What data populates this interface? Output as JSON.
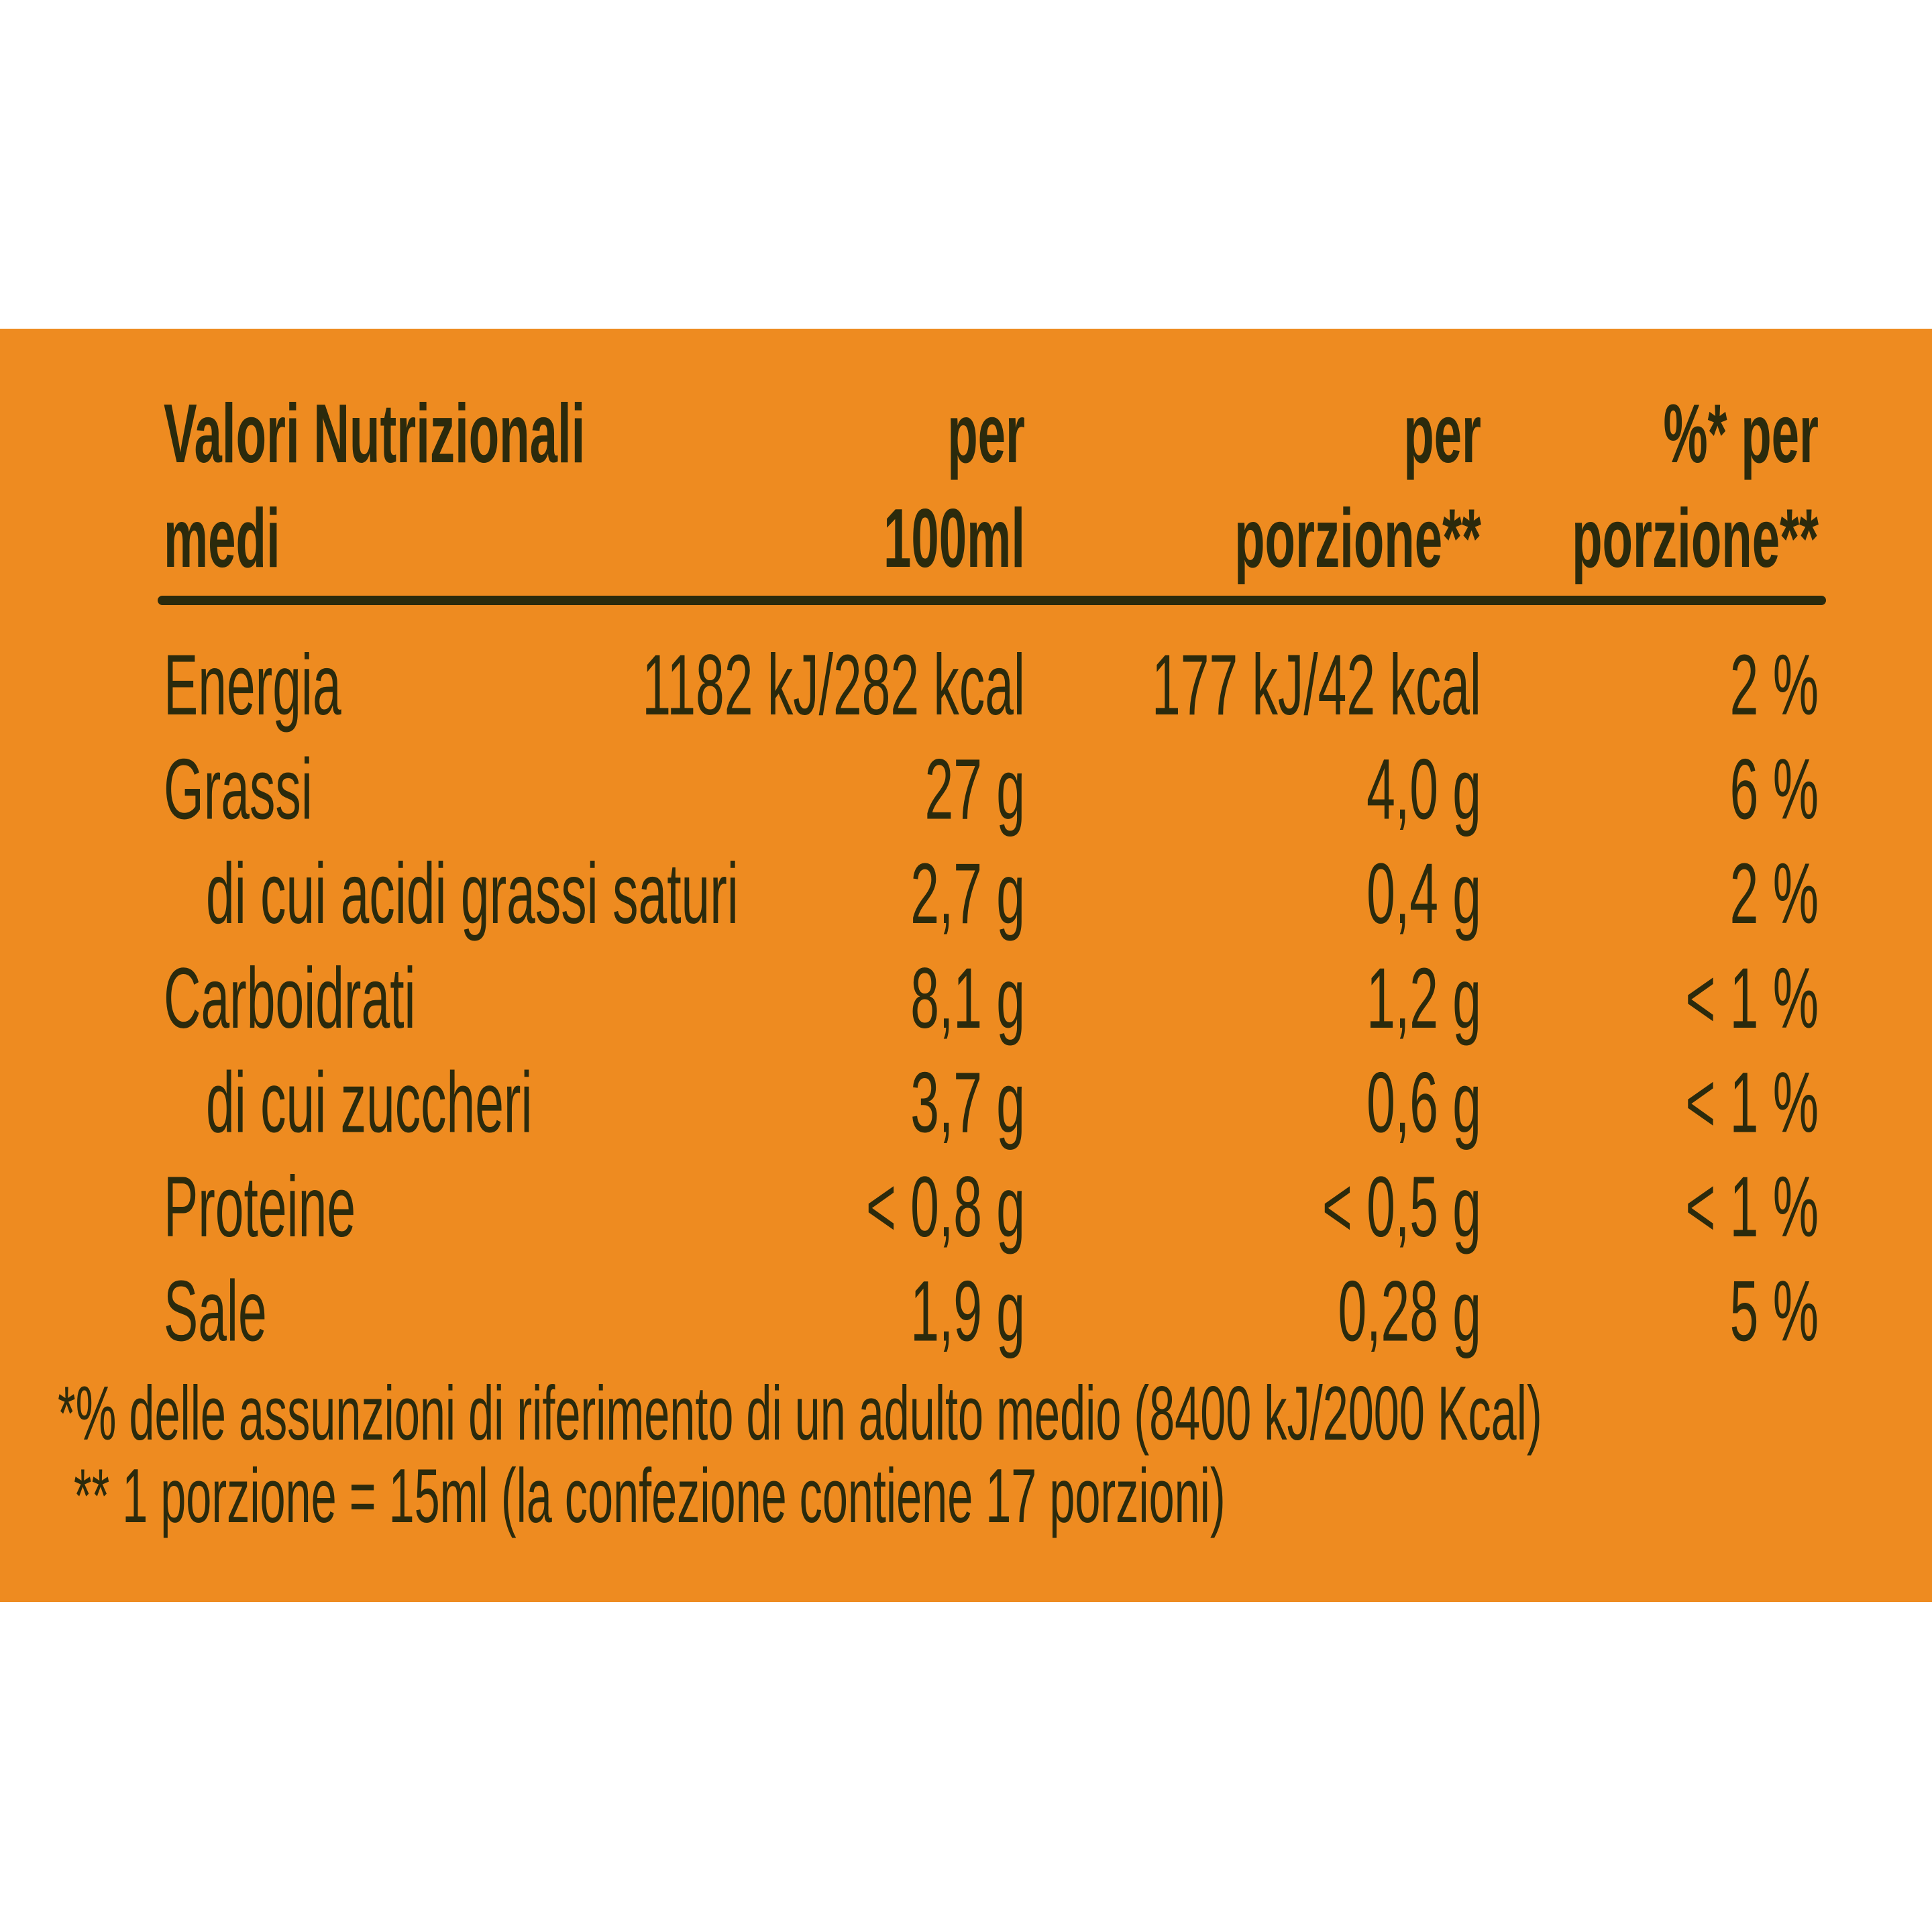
{
  "header": {
    "cells": [
      [
        "Valori Nutrizionali",
        "medi"
      ],
      [
        "per",
        "100ml"
      ],
      [
        "per",
        "porzione**"
      ],
      [
        "%* per",
        "porzione**"
      ]
    ]
  },
  "table": {
    "rows": [
      {
        "label": "Energia",
        "sub": false,
        "values": [
          "1182 kJ/282 kcal",
          "177 kJ/42 kcal",
          "2 %"
        ]
      },
      {
        "label": "Grassi",
        "sub": false,
        "values": [
          "27 g",
          "4,0 g",
          "6 %"
        ]
      },
      {
        "label": "di cui acidi grassi saturi",
        "sub": true,
        "values": [
          "2,7 g",
          "0,4 g",
          "2 %"
        ]
      },
      {
        "label": "Carboidrati",
        "sub": false,
        "values": [
          "8,1 g",
          "1,2 g",
          "< 1 %"
        ]
      },
      {
        "label": "di cui zuccheri",
        "sub": true,
        "values": [
          "3,7 g",
          "0,6 g",
          "< 1 %"
        ]
      },
      {
        "label": "Proteine",
        "sub": false,
        "values": [
          "< 0,8 g",
          "< 0,5 g",
          "< 1 %"
        ]
      },
      {
        "label": "Sale",
        "sub": false,
        "values": [
          "1,9 g",
          "0,28 g",
          "5 %"
        ]
      }
    ]
  },
  "footnotes": [
    "*% delle assunzioni di riferimento di un adulto medio (8400 kJ/2000 Kcal)",
    "** 1 porzione = 15ml (la confezione contiene 17 porzioni)"
  ]
}
